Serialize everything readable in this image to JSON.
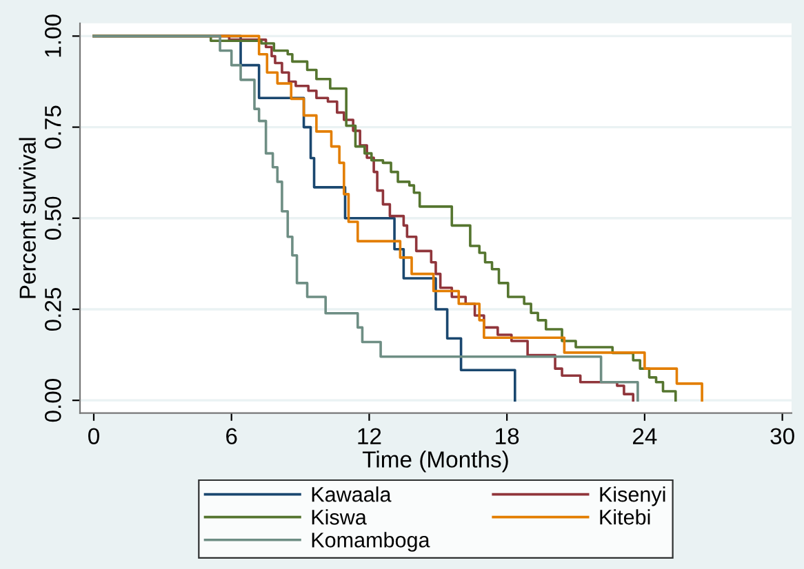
{
  "chart_data": {
    "type": "step",
    "xlabel": "Time (Months)",
    "ylabel": "Percent survival",
    "xlim": [
      -0.6,
      30.4
    ],
    "xticks": [
      0,
      6,
      12,
      18,
      24,
      30
    ],
    "ylim": [
      -0.035,
      1.035
    ],
    "yticks": [
      {
        "value": 0,
        "label": "0.00"
      },
      {
        "value": 0.25,
        "label": "0.25"
      },
      {
        "value": 0.5,
        "label": "0.50"
      },
      {
        "value": 0.75,
        "label": "0.75"
      },
      {
        "value": 1,
        "label": "1.00"
      }
    ],
    "grid": "y",
    "legend": "bottom",
    "series": [
      {
        "name": "Kawaala",
        "color": "#1a476f",
        "x": [
          0,
          6.4,
          7.2,
          9.15,
          9.45,
          9.6,
          10.95,
          13.1,
          13.5,
          14.9,
          15.4,
          16.0,
          18.35
        ],
        "values": [
          1,
          0.92,
          0.83,
          0.75,
          0.665,
          0.585,
          0.5,
          0.415,
          0.335,
          0.25,
          0.17,
          0.083,
          0
        ]
      },
      {
        "name": "Kisenyi",
        "color": "#90353b",
        "x": [
          0,
          5.9,
          7.5,
          7.75,
          7.9,
          8.2,
          8.5,
          8.8,
          9.35,
          9.7,
          10.2,
          10.6,
          10.9,
          11.3,
          11.6,
          11.9,
          12.2,
          12.35,
          12.6,
          12.9,
          13.5,
          13.65,
          14.05,
          14.7,
          14.9,
          15.1,
          15.6,
          16.2,
          16.6,
          17.0,
          17.6,
          18.2,
          18.9,
          20.1,
          20.4,
          21.2,
          22.8,
          23.1,
          23.5
        ],
        "values": [
          1,
          0.99,
          0.97,
          0.945,
          0.926,
          0.9,
          0.875,
          0.863,
          0.85,
          0.83,
          0.82,
          0.79,
          0.77,
          0.74,
          0.7,
          0.666,
          0.627,
          0.576,
          0.538,
          0.506,
          0.48,
          0.449,
          0.41,
          0.379,
          0.347,
          0.309,
          0.284,
          0.265,
          0.233,
          0.2,
          0.18,
          0.163,
          0.124,
          0.087,
          0.068,
          0.05,
          0.04,
          0.017,
          0
        ]
      },
      {
        "name": "Kiswa",
        "color": "#55752f",
        "x": [
          0,
          5.1,
          7.3,
          7.85,
          8.45,
          8.65,
          9.3,
          9.7,
          10.3,
          11.0,
          11.4,
          11.8,
          12.1,
          12.6,
          12.95,
          13.25,
          13.75,
          13.95,
          14.2,
          15.6,
          16.4,
          16.8,
          17.05,
          17.35,
          17.65,
          18.05,
          18.75,
          19.05,
          19.35,
          19.7,
          20.4,
          21.0,
          22.6,
          23.5,
          23.8,
          24.2,
          24.5,
          24.8,
          25.35
        ],
        "values": [
          1,
          0.987,
          0.98,
          0.96,
          0.95,
          0.93,
          0.907,
          0.882,
          0.856,
          0.754,
          0.697,
          0.678,
          0.659,
          0.652,
          0.627,
          0.6,
          0.59,
          0.57,
          0.532,
          0.48,
          0.424,
          0.405,
          0.379,
          0.36,
          0.322,
          0.284,
          0.265,
          0.24,
          0.22,
          0.195,
          0.163,
          0.146,
          0.13,
          0.11,
          0.087,
          0.063,
          0.05,
          0.025,
          0
        ]
      },
      {
        "name": "Kitebi",
        "color": "#e37e00",
        "x": [
          0,
          7.2,
          7.55,
          8.0,
          8.6,
          9.15,
          9.7,
          10.35,
          10.7,
          10.9,
          11.1,
          11.5,
          13.35,
          13.85,
          14.8,
          15.9,
          16.8,
          17.0,
          20.5,
          24.0,
          25.4,
          26.5
        ],
        "values": [
          1,
          0.95,
          0.9,
          0.87,
          0.828,
          0.782,
          0.738,
          0.697,
          0.652,
          0.566,
          0.49,
          0.437,
          0.392,
          0.347,
          0.3,
          0.265,
          0.22,
          0.172,
          0.131,
          0.087,
          0.046,
          0
        ]
      },
      {
        "name": "Komamboga",
        "color": "#6e8e84",
        "x": [
          0,
          5.5,
          6.0,
          6.4,
          7.0,
          7.2,
          7.5,
          7.8,
          8.0,
          8.2,
          8.45,
          8.65,
          8.85,
          9.3,
          10.1,
          11.5,
          11.7,
          12.5,
          22.1,
          23.7
        ],
        "values": [
          1,
          0.96,
          0.92,
          0.88,
          0.8,
          0.767,
          0.678,
          0.64,
          0.6,
          0.519,
          0.449,
          0.398,
          0.322,
          0.284,
          0.239,
          0.2,
          0.16,
          0.12,
          0.05,
          0
        ]
      }
    ]
  }
}
